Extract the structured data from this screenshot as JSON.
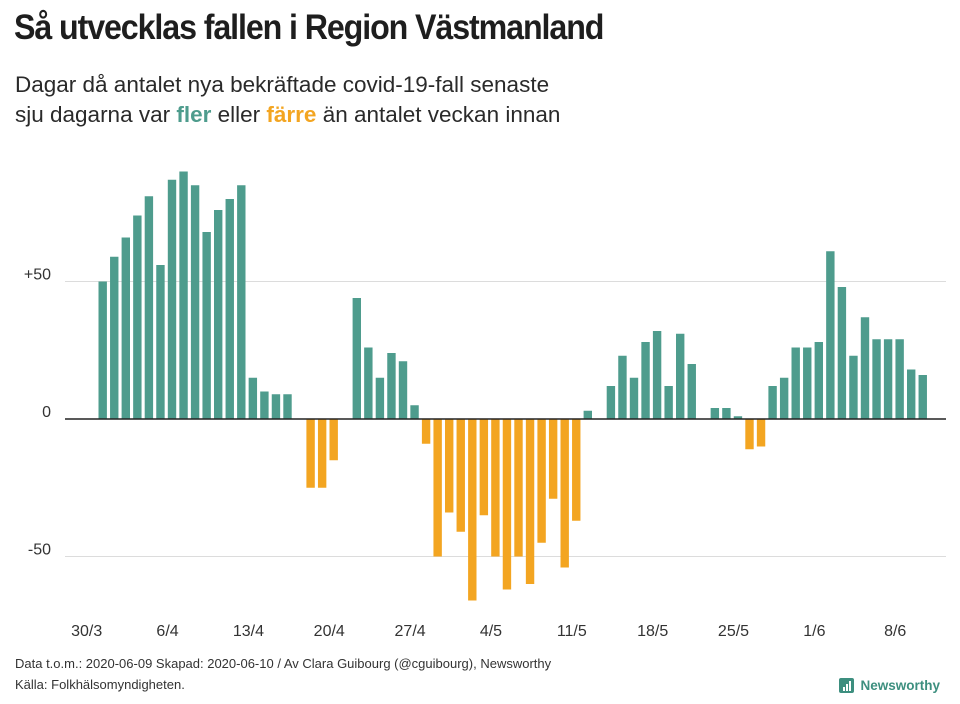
{
  "header": {
    "title": "Så utvecklas fallen i Region Västmanland",
    "subtitle_line1": "Dagar då antalet nya bekräftade covid-19-fall senaste",
    "subtitle_line2_pre": "sju dagarna var ",
    "subtitle_more": "fler",
    "subtitle_mid": " eller ",
    "subtitle_less": "färre",
    "subtitle_post": " än antalet veckan innan"
  },
  "colors": {
    "positive": "#4e9c8d",
    "negative": "#f3a521",
    "gridline": "#dcdcdc",
    "zeroline": "#222222"
  },
  "chart_data": {
    "type": "bar",
    "title": "Så utvecklas fallen i Region Västmanland",
    "xlabel": "",
    "ylabel": "",
    "ylim": [
      -67,
      93
    ],
    "yticks": [
      50,
      0,
      -50
    ],
    "ytick_labels": [
      "+50",
      "0",
      "-50"
    ],
    "xtick_labels": [
      "30/3",
      "6/4",
      "13/4",
      "20/4",
      "27/4",
      "4/5",
      "11/5",
      "18/5",
      "25/5",
      "1/6",
      "8/6"
    ],
    "xtick_positions": [
      0,
      7,
      14,
      21,
      28,
      35,
      42,
      49,
      56,
      63,
      70
    ],
    "values": [
      50,
      59,
      66,
      74,
      81,
      56,
      87,
      90,
      85,
      68,
      76,
      80,
      85,
      15,
      10,
      9,
      9,
      0,
      -25,
      -25,
      -15,
      0,
      44,
      26,
      15,
      24,
      21,
      5,
      -9,
      -50,
      -34,
      -41,
      -66,
      -35,
      -50,
      -62,
      -50,
      -60,
      -45,
      -29,
      -54,
      -37,
      3,
      0,
      12,
      23,
      15,
      28,
      32,
      12,
      31,
      20,
      0,
      4,
      4,
      1,
      -11,
      -10,
      12,
      15,
      26,
      26,
      28,
      61,
      48,
      23,
      37,
      29,
      29,
      29,
      18,
      16
    ]
  },
  "footer": {
    "line1": "Data t.o.m.: 2020-06-09 Skapad: 2020-06-10 / Av Clara Guibourg (@cguibourg), Newsworthy",
    "line2": "Källa: Folkhälsomyndigheten.",
    "brand": "Newsworthy"
  }
}
